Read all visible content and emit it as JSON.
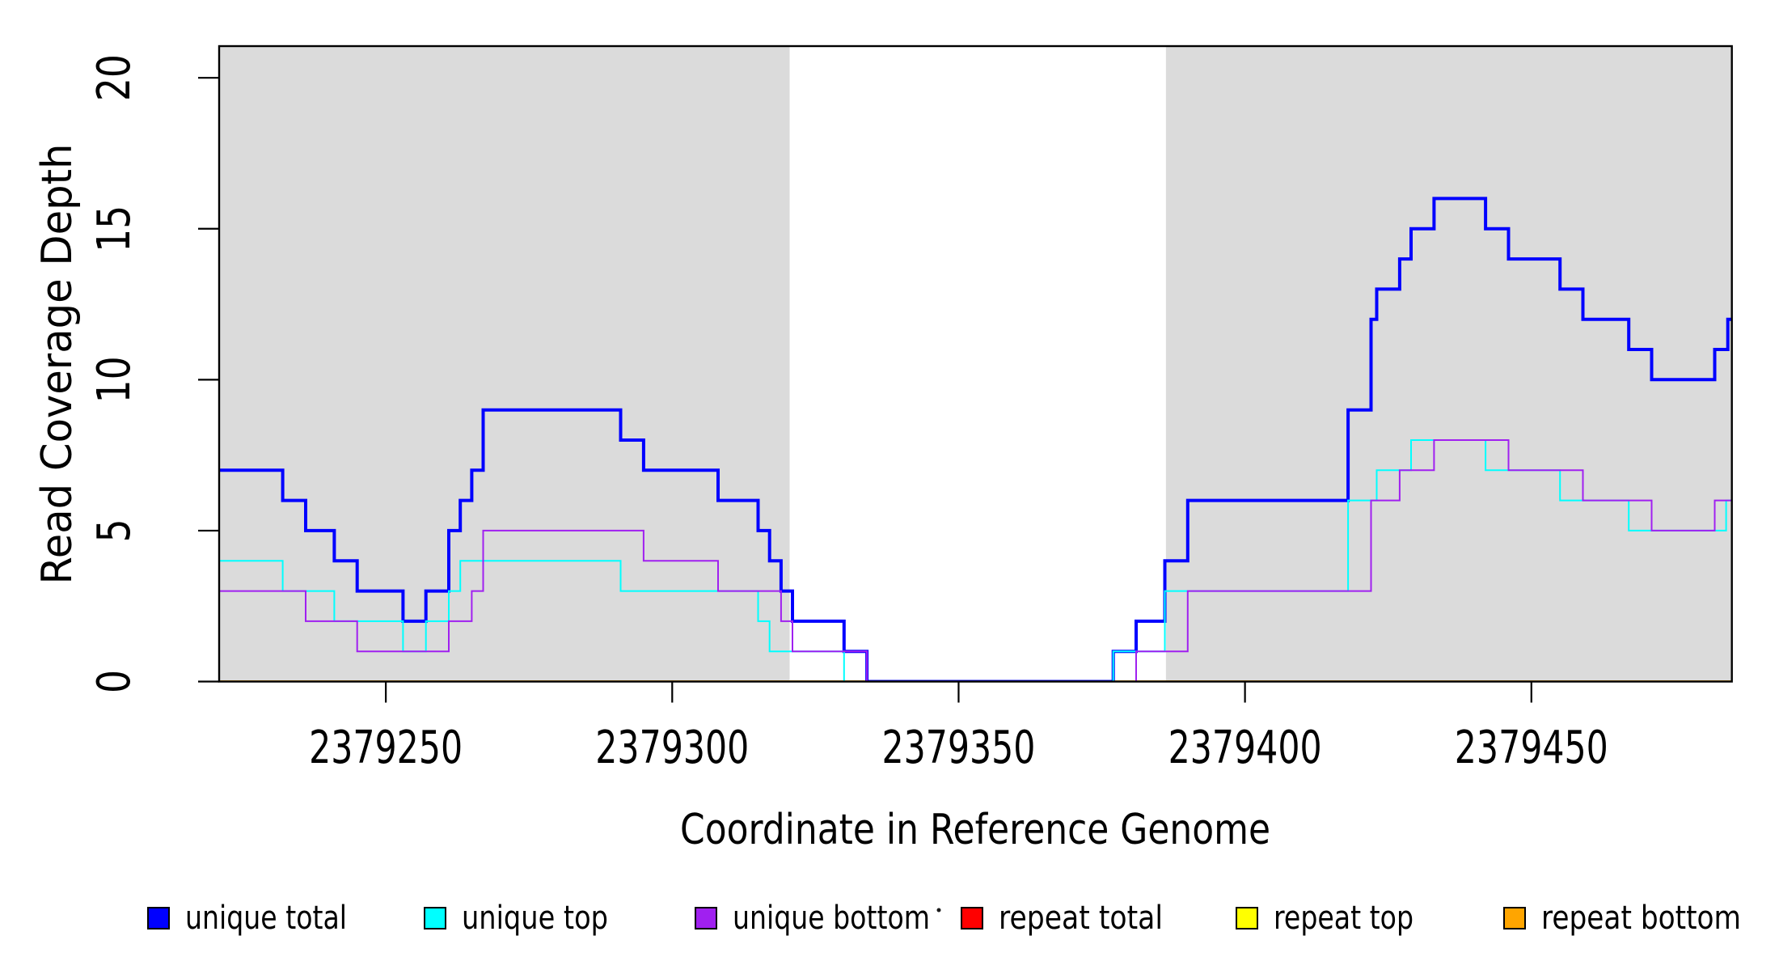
{
  "chart_data": {
    "type": "line",
    "subtype": "step-coverage-plot",
    "title": "",
    "xlabel": "Coordinate in Reference Genome",
    "ylabel": "Read Coverage Depth",
    "xlim": [
      2379220.9,
      2379485.0
    ],
    "ylim": [
      0,
      21.05
    ],
    "x_ticks": [
      2379250,
      2379300,
      2379350,
      2379400,
      2379450
    ],
    "y_ticks": [
      0,
      5,
      10,
      15,
      20
    ],
    "grid": false,
    "shade_color": "#DBDBDB",
    "shaded_regions": [
      {
        "x0": 2379220.9,
        "x1": 2379320.5
      },
      {
        "x0": 2379386.2,
        "x1": 2379485.0
      }
    ],
    "series": [
      {
        "name": "repeat total",
        "color": "#FF0000",
        "line_width": 2,
        "points": [
          [
            2379220.9,
            0
          ]
        ]
      },
      {
        "name": "repeat top",
        "color": "#FFFF00",
        "line_width": 2,
        "points": [
          [
            2379220.9,
            0
          ]
        ]
      },
      {
        "name": "repeat bottom",
        "color": "#FFA500",
        "line_width": 3,
        "points": [
          [
            2379220.9,
            0
          ]
        ]
      },
      {
        "name": "unique total",
        "color": "#0000FF",
        "line_width": 4,
        "points": [
          [
            2379220.9,
            7
          ],
          [
            2379232,
            6
          ],
          [
            2379236,
            5
          ],
          [
            2379241,
            4
          ],
          [
            2379245,
            3
          ],
          [
            2379253,
            2
          ],
          [
            2379257,
            3
          ],
          [
            2379261,
            5
          ],
          [
            2379263,
            6
          ],
          [
            2379265,
            7
          ],
          [
            2379267,
            9
          ],
          [
            2379291,
            8
          ],
          [
            2379295,
            7
          ],
          [
            2379308,
            6
          ],
          [
            2379315,
            5
          ],
          [
            2379317,
            4
          ],
          [
            2379319,
            3
          ],
          [
            2379321,
            2
          ],
          [
            2379330,
            1
          ],
          [
            2379334,
            0
          ],
          [
            2379377,
            1
          ],
          [
            2379381,
            2
          ],
          [
            2379386,
            4
          ],
          [
            2379390,
            6
          ],
          [
            2379418,
            9
          ],
          [
            2379422,
            12
          ],
          [
            2379423,
            13
          ],
          [
            2379427,
            14
          ],
          [
            2379429,
            15
          ],
          [
            2379433,
            16
          ],
          [
            2379442,
            15
          ],
          [
            2379446,
            14
          ],
          [
            2379455,
            13
          ],
          [
            2379459,
            12
          ],
          [
            2379467,
            11
          ],
          [
            2379471,
            10
          ],
          [
            2379482,
            11
          ],
          [
            2379484.3,
            12
          ]
        ]
      },
      {
        "name": "unique top",
        "color": "#00FFFF",
        "line_width": 2,
        "points": [
          [
            2379220.9,
            4
          ],
          [
            2379232,
            3
          ],
          [
            2379241,
            2
          ],
          [
            2379253,
            1
          ],
          [
            2379257,
            2
          ],
          [
            2379261,
            3
          ],
          [
            2379263,
            4
          ],
          [
            2379291,
            3
          ],
          [
            2379315,
            2
          ],
          [
            2379317,
            1
          ],
          [
            2379330,
            0
          ],
          [
            2379377,
            1
          ],
          [
            2379386,
            3
          ],
          [
            2379418,
            6
          ],
          [
            2379423,
            7
          ],
          [
            2379429,
            8
          ],
          [
            2379442,
            7
          ],
          [
            2379455,
            6
          ],
          [
            2379467,
            5
          ],
          [
            2379484,
            6
          ]
        ]
      },
      {
        "name": "unique bottom",
        "color": "#A020F0",
        "line_width": 2,
        "points": [
          [
            2379220.9,
            3
          ],
          [
            2379236,
            2
          ],
          [
            2379245,
            1
          ],
          [
            2379261,
            2
          ],
          [
            2379265,
            3
          ],
          [
            2379267,
            5
          ],
          [
            2379295,
            4
          ],
          [
            2379308,
            3
          ],
          [
            2379319,
            2
          ],
          [
            2379321,
            1
          ],
          [
            2379334,
            0
          ],
          [
            2379381,
            1
          ],
          [
            2379390,
            3
          ],
          [
            2379422,
            6
          ],
          [
            2379427,
            7
          ],
          [
            2379433,
            8
          ],
          [
            2379446,
            7
          ],
          [
            2379459,
            6
          ],
          [
            2379471,
            5
          ],
          [
            2379482,
            6
          ]
        ]
      }
    ],
    "legend": {
      "position": "bottom",
      "items": [
        {
          "label": "unique total",
          "color": "#0000FF"
        },
        {
          "label": "unique top",
          "color": "#00FFFF"
        },
        {
          "label": "unique bottom",
          "color": "#A020F0"
        },
        {
          "label": "repeat total",
          "color": "#FF0000"
        },
        {
          "label": "repeat top",
          "color": "#FFFF00"
        },
        {
          "label": "repeat bottom",
          "color": "#FFA500"
        }
      ]
    }
  }
}
